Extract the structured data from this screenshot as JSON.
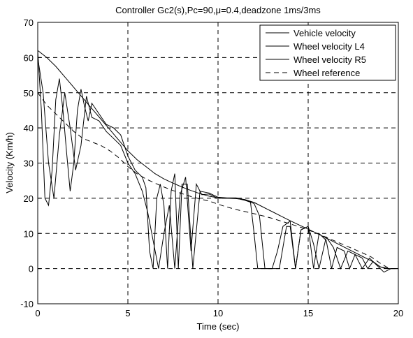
{
  "chart_data": {
    "type": "line",
    "title": "Controller Gc2(s),Pc=90,μ=0.4,deadzone 1ms/3ms",
    "xlabel": "Time (sec)",
    "ylabel": "Velocity (Km/h)",
    "xlim": [
      0,
      20
    ],
    "ylim": [
      -10,
      70
    ],
    "xticks": [
      "0",
      "5",
      "10",
      "15",
      "20"
    ],
    "yticks": [
      "-10",
      "0",
      "10",
      "20",
      "30",
      "40",
      "50",
      "60",
      "70"
    ],
    "grid": true,
    "legend_position": "top-right",
    "series": [
      {
        "name": "Vehicle velocity",
        "style": "solid",
        "x": [
          0,
          0.5,
          1,
          1.5,
          2,
          2.5,
          3,
          3.5,
          4,
          4.5,
          5,
          5.5,
          6,
          6.5,
          7,
          7.5,
          8,
          8.5,
          9,
          9.5,
          10,
          10.5,
          11,
          11.5,
          12,
          12.5,
          13,
          13.5,
          14,
          14.5,
          15,
          15.5,
          16,
          16.5,
          17,
          17.5,
          18,
          18.5,
          19,
          19.5
        ],
        "values": [
          62,
          60,
          57.5,
          54.5,
          51.5,
          48.5,
          45.5,
          42.5,
          39.5,
          36.5,
          33.5,
          31,
          29,
          27,
          25.5,
          24.3,
          23.2,
          22.2,
          21.3,
          20.6,
          20.1,
          20,
          19.9,
          19.6,
          18.8,
          17.5,
          16.2,
          14.9,
          13.6,
          12.4,
          11.2,
          10,
          8.7,
          7.4,
          6.1,
          4.8,
          3.5,
          2.2,
          0.5,
          0
        ]
      },
      {
        "name": "Wheel velocity L4",
        "style": "solid",
        "x": [
          0,
          0.2,
          0.4,
          0.6,
          0.8,
          1.0,
          1.2,
          1.4,
          1.6,
          1.8,
          2.0,
          2.2,
          2.4,
          2.6,
          2.8,
          3.0,
          3.4,
          3.8,
          4.2,
          4.6,
          5.0,
          5.4,
          5.8,
          6.0,
          6.2,
          6.4,
          6.6,
          6.8,
          7.0,
          7.2,
          7.4,
          7.6,
          7.8,
          8.0,
          8.3,
          8.6,
          9.0,
          9.5,
          10.0,
          10.5,
          11.0,
          11.5,
          11.8,
          12.0,
          12.2,
          12.6,
          13.0,
          13.4,
          13.8,
          14.0,
          14.3,
          14.6,
          15.0,
          15.3,
          15.6,
          16.0,
          16.3,
          16.6,
          17.0,
          17.3,
          17.6,
          18.0,
          18.3,
          18.6,
          19.0,
          19.3,
          19.6,
          20.0
        ],
        "values": [
          62,
          45,
          20,
          18,
          28,
          48,
          54,
          45,
          33,
          22,
          30,
          45,
          51,
          46,
          42,
          47,
          44,
          41,
          40,
          38,
          32,
          28,
          26,
          23,
          5,
          0,
          20,
          24,
          18,
          0,
          22,
          27,
          0,
          24,
          24,
          0,
          22,
          21.5,
          20.3,
          20.1,
          20.1,
          19.6,
          19,
          10,
          0,
          0,
          0,
          0,
          12,
          12,
          0,
          11,
          12,
          0,
          10,
          8,
          0,
          6,
          5,
          0,
          4,
          3,
          0,
          2,
          0.5,
          0,
          0,
          0
        ]
      },
      {
        "name": "Wheel velocity R5",
        "style": "solid",
        "x": [
          0,
          0.3,
          0.6,
          0.9,
          1.2,
          1.5,
          1.8,
          2.1,
          2.4,
          2.7,
          3.0,
          3.4,
          3.8,
          4.2,
          4.6,
          5.0,
          5.4,
          5.8,
          6.1,
          6.4,
          6.7,
          7.0,
          7.3,
          7.6,
          7.9,
          8.2,
          8.5,
          8.8,
          9.1,
          9.5,
          10.0,
          10.5,
          11.0,
          11.5,
          12.0,
          12.3,
          12.6,
          13.0,
          13.3,
          13.6,
          14.0,
          14.3,
          14.6,
          15.0,
          15.3,
          15.6,
          16.0,
          16.4,
          16.8,
          17.2,
          17.6,
          18.0,
          18.4,
          18.8,
          19.2,
          19.6,
          20.0
        ],
        "values": [
          60,
          50,
          30,
          20,
          38,
          50,
          40,
          28,
          35,
          49,
          43,
          42,
          39,
          37,
          35,
          30,
          27,
          22,
          16,
          8,
          0,
          10,
          18,
          0,
          21,
          26,
          5,
          24,
          21,
          21.2,
          20,
          20,
          20,
          19.4,
          18.5,
          15,
          0,
          0,
          5,
          12,
          13.5,
          0,
          11,
          12,
          7,
          0,
          9,
          6,
          0,
          5,
          4,
          0,
          3,
          1,
          -1,
          0,
          0
        ]
      },
      {
        "name": "Wheel reference",
        "style": "dashed",
        "x": [
          0,
          0.5,
          1,
          1.5,
          2,
          2.5,
          3,
          3.5,
          4,
          4.5,
          5,
          5.5,
          6,
          6.5,
          7,
          7.5,
          8,
          8.5,
          9,
          9.5,
          10,
          10.5,
          11,
          11.5,
          12,
          12.5,
          13,
          13.5,
          14,
          14.5,
          15,
          15.5,
          16,
          16.5,
          17,
          17.5,
          18,
          18.5,
          19,
          19.5
        ],
        "values": [
          50,
          46.5,
          44,
          41.5,
          39,
          37,
          36,
          35,
          33.5,
          31.5,
          29,
          27,
          25.5,
          24.3,
          23.2,
          22.2,
          21.3,
          20.5,
          19.8,
          19.2,
          18.3,
          17.5,
          16.8,
          16.2,
          15.6,
          15,
          14.3,
          13.5,
          12.7,
          11.9,
          11,
          10,
          8.9,
          7.8,
          6.7,
          5.6,
          4.5,
          3.3,
          1.5,
          0
        ]
      }
    ]
  }
}
